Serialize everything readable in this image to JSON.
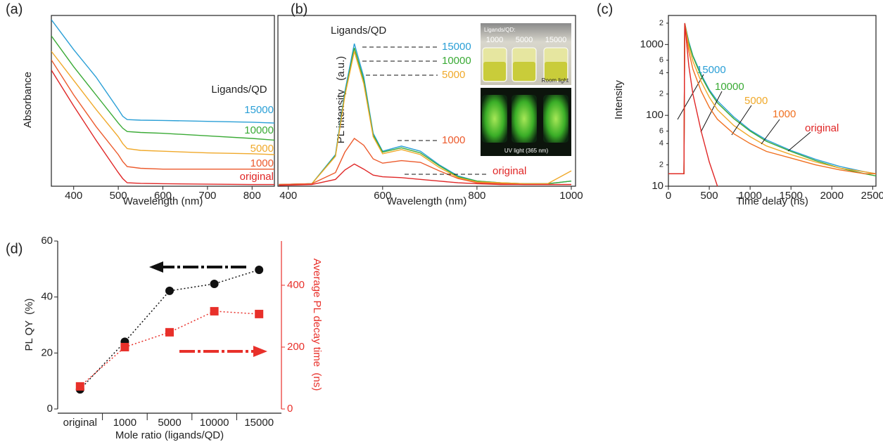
{
  "chart_data": [
    {
      "type": "line",
      "panel_label": "(a)",
      "xlabel": "Wavelength  (nm)",
      "ylabel": "Absorbance",
      "legend_title": "Ligands/QD",
      "x": [
        350,
        400,
        450,
        500,
        510,
        520,
        550,
        600,
        700,
        800,
        850
      ],
      "xlim": [
        350,
        850
      ],
      "xticks": [
        400,
        500,
        600,
        700,
        800
      ],
      "ylim": [
        0,
        10
      ],
      "series": [
        {
          "name": "15000",
          "color": "#2a9fd6",
          "values": [
            9.75,
            8.0,
            6.4,
            4.5,
            4.1,
            3.9,
            3.87,
            3.85,
            3.8,
            3.75,
            3.7
          ]
        },
        {
          "name": "10000",
          "color": "#3aaa35",
          "values": [
            8.8,
            7.0,
            5.35,
            3.7,
            3.4,
            3.2,
            3.15,
            3.1,
            2.95,
            2.8,
            2.7
          ]
        },
        {
          "name": "5000",
          "color": "#f0a92a",
          "values": [
            7.9,
            6.2,
            4.5,
            2.9,
            2.5,
            2.2,
            2.1,
            2.05,
            1.95,
            1.9,
            1.85
          ]
        },
        {
          "name": "1000",
          "color": "#ec5a2c",
          "values": [
            7.4,
            5.35,
            3.5,
            1.85,
            1.45,
            1.15,
            1.05,
            1.0,
            1.0,
            1.0,
            1.0
          ]
        },
        {
          "name": "original",
          "color": "#e02626",
          "values": [
            6.8,
            4.7,
            2.7,
            0.8,
            0.45,
            0.2,
            0.17,
            0.15,
            0.12,
            0.1,
            0.1
          ]
        }
      ]
    },
    {
      "type": "line",
      "panel_label": "(b)",
      "xlabel": "Wavelength  (nm)",
      "ylabel": "PL intensity   (a.u.)",
      "legend_title": "Ligands/QD",
      "inset": {
        "title": "Ligands/QD:",
        "samples": [
          "1000",
          "5000",
          "15000"
        ],
        "top_caption": "Room light",
        "bottom_caption": "UV light (365 nm)"
      },
      "x": [
        380,
        450,
        500,
        520,
        540,
        560,
        580,
        600,
        640,
        680,
        720,
        760,
        800,
        850,
        900,
        950,
        1000
      ],
      "xlim": [
        378,
        1009
      ],
      "xticks": [
        400,
        600,
        800,
        1000
      ],
      "ylim": [
        0,
        10
      ],
      "series": [
        {
          "name": "15000",
          "color": "#2a9fd6",
          "values": [
            0.1,
            0.15,
            1.85,
            5.55,
            8.35,
            6.4,
            3.1,
            2.05,
            2.35,
            2.05,
            1.25,
            0.6,
            0.3,
            0.2,
            0.15,
            0.15,
            0.3
          ]
        },
        {
          "name": "10000",
          "color": "#3aaa35",
          "values": [
            0.1,
            0.15,
            1.8,
            5.4,
            8.1,
            6.2,
            3.0,
            2.0,
            2.25,
            1.95,
            1.2,
            0.55,
            0.3,
            0.2,
            0.15,
            0.15,
            0.3
          ]
        },
        {
          "name": "5000",
          "color": "#f0a92a",
          "values": [
            0.1,
            0.15,
            1.75,
            5.3,
            7.9,
            6.0,
            2.9,
            1.9,
            2.15,
            1.85,
            1.1,
            0.5,
            0.25,
            0.2,
            0.15,
            0.15,
            0.9
          ]
        },
        {
          "name": "1000",
          "color": "#ec5a2c",
          "values": [
            0.1,
            0.15,
            0.8,
            2.0,
            2.8,
            2.4,
            1.6,
            1.35,
            1.5,
            1.4,
            0.9,
            0.45,
            0.2,
            0.15,
            0.1,
            0.1,
            0.1
          ]
        },
        {
          "name": "original",
          "color": "#e02626",
          "values": [
            0.05,
            0.1,
            0.4,
            0.95,
            1.3,
            1.0,
            0.65,
            0.55,
            0.5,
            0.4,
            0.3,
            0.2,
            0.15,
            0.1,
            0.1,
            0.1,
            0.1
          ]
        }
      ]
    },
    {
      "type": "line",
      "panel_label": "(c)",
      "xlabel": "Time delay  (ns)",
      "ylabel": "Intensity",
      "y_scale": "log",
      "x": [
        0,
        100,
        190,
        200,
        250,
        300,
        400,
        500,
        600,
        800,
        1000,
        1200,
        1500,
        1800,
        2100,
        2400,
        2540
      ],
      "xlim": [
        0,
        2540
      ],
      "xticks": [
        0,
        500,
        1000,
        1500,
        2000,
        2500
      ],
      "ylim": [
        10,
        2570
      ],
      "yticks": [
        10,
        {
          "value": 20,
          "label": "2"
        },
        {
          "value": 40,
          "label": "4"
        },
        {
          "value": 60,
          "label": "6"
        },
        100,
        {
          "value": 200,
          "label": "2"
        },
        {
          "value": 400,
          "label": "4"
        },
        {
          "value": 600,
          "label": "6"
        },
        1000,
        {
          "value": 2000,
          "label": "2"
        }
      ],
      "series": [
        {
          "name": "15000",
          "color": "#2a9fd6",
          "values": [
            15,
            15,
            15,
            2000,
            1100,
            700,
            380,
            230,
            160,
            95,
            62,
            45,
            32,
            24,
            19,
            16,
            15
          ]
        },
        {
          "name": "10000",
          "color": "#3aaa35",
          "values": [
            15,
            15,
            15,
            2000,
            1050,
            680,
            360,
            220,
            150,
            90,
            60,
            43,
            31,
            23,
            18,
            15,
            14
          ]
        },
        {
          "name": "5000",
          "color": "#f0a92a",
          "values": [
            15,
            15,
            15,
            2000,
            950,
            580,
            300,
            180,
            120,
            72,
            50,
            37,
            28,
            22,
            18,
            16,
            15
          ]
        },
        {
          "name": "1000",
          "color": "#f07020",
          "values": [
            15,
            15,
            15,
            2000,
            800,
            450,
            220,
            130,
            88,
            55,
            40,
            31,
            25,
            20,
            17,
            15,
            15
          ]
        },
        {
          "name": "original",
          "color": "#e02626",
          "values": [
            15,
            15,
            15,
            2000,
            500,
            200,
            60,
            22,
            10,
            null,
            null,
            null,
            null,
            null,
            null,
            null,
            null
          ]
        }
      ]
    },
    {
      "type": "line",
      "panel_label": "(d)",
      "xlabel": "Mole ratio (ligands/QD)",
      "ylabel": "PL QY  (%)",
      "y2label": "Average PL decay time  (ns)",
      "categories": [
        "original",
        "1000",
        "5000",
        "10000",
        "15000"
      ],
      "ylim": [
        0,
        60
      ],
      "yticks": [
        0,
        20,
        40,
        60
      ],
      "y2lim": [
        0,
        543
      ],
      "y2ticks": [
        0,
        200,
        400
      ],
      "series": [
        {
          "color": "#111111",
          "values": [
            7,
            24,
            42.2,
            44.7,
            49.7
          ]
        },
        {
          "color": "#e8302a",
          "axis": "y2",
          "values": [
            73,
            200,
            248,
            316,
            307
          ]
        }
      ]
    }
  ]
}
